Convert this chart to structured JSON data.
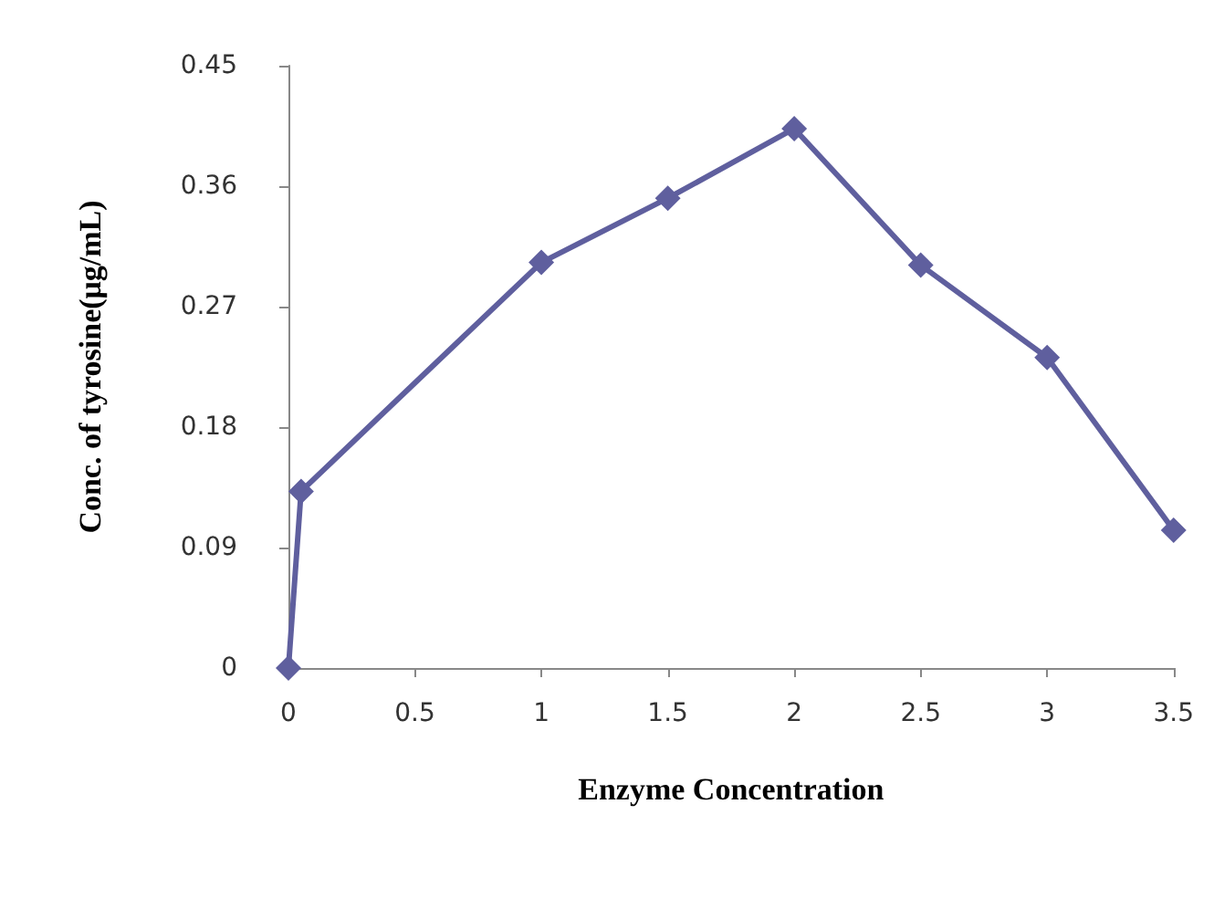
{
  "chart_data": {
    "type": "line",
    "xlabel": "Enzyme Concentration",
    "ylabel": "Conc. of tyrosine(μg/mL)",
    "x": [
      0,
      0.05,
      1,
      1.5,
      2,
      2.5,
      3,
      3.5
    ],
    "series": [
      {
        "color": "#5f5f9e",
        "values": [
          0,
          0.132,
          0.303,
          0.351,
          0.403,
          0.301,
          0.232,
          0.103
        ]
      }
    ],
    "xlim": [
      0,
      3.5
    ],
    "xticks": [
      0,
      0.5,
      1,
      1.5,
      2,
      2.5,
      3,
      3.5
    ],
    "ylim": [
      0,
      0.45
    ],
    "yticks": [
      0,
      0.09,
      0.18,
      0.27,
      0.36,
      0.45
    ],
    "marker": "diamond",
    "line_style": "solid",
    "grid": false
  }
}
